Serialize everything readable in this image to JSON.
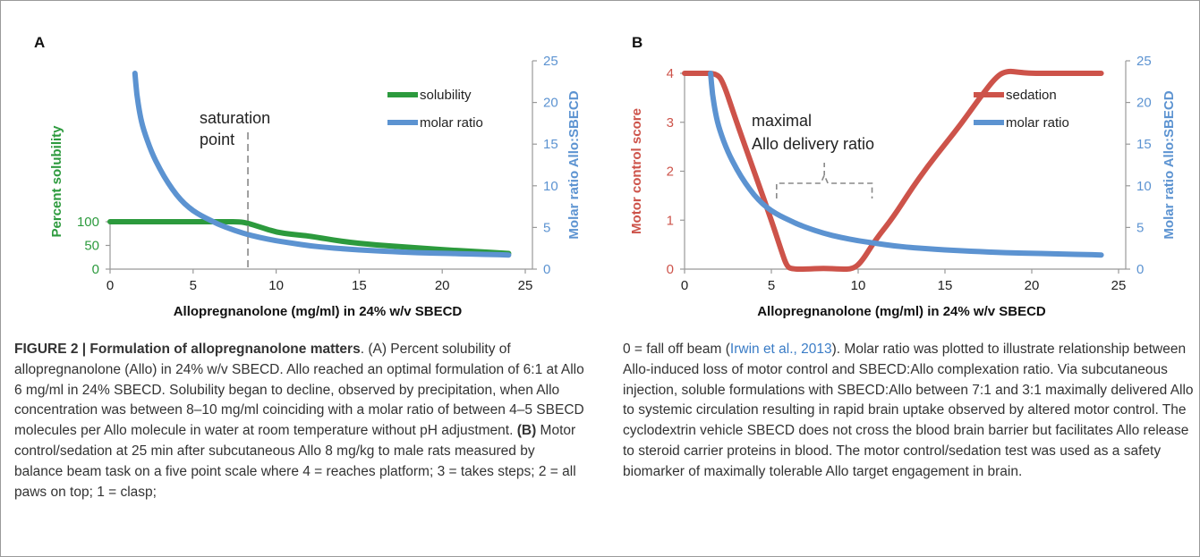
{
  "colors": {
    "green": "#2c9a3d",
    "blue": "#5c93d1",
    "red": "#cd534a",
    "grid": "#999999",
    "dash": "#888888"
  },
  "chart_data": [
    {
      "panel_label": "A",
      "type": "line",
      "xlabel": "Allopregnanolone (mg/ml) in 24% w/v SBECD",
      "ylabel_left": "Percent solubility",
      "ylabel_right": "Molar ratio Allo:SBECD",
      "xlim": [
        0,
        25
      ],
      "xticks": [
        0,
        5,
        10,
        15,
        20,
        25
      ],
      "ylim_left": [
        0,
        100
      ],
      "yticks_left": [
        0,
        50,
        100
      ],
      "ylim_right": [
        0,
        25
      ],
      "yticks_right": [
        0,
        5,
        10,
        15,
        20,
        25
      ],
      "annotation": {
        "lines": [
          "saturation",
          "point"
        ],
        "x": 8.3
      },
      "legend": {
        "placement": "top-right",
        "entries": [
          "solubility",
          "molar ratio"
        ]
      },
      "series": [
        {
          "name": "solubility",
          "axis": "left",
          "color": "green",
          "x": [
            0,
            2,
            4,
            6,
            7,
            7.8,
            8.3,
            9,
            10,
            11,
            12,
            14,
            16,
            18,
            20,
            22,
            24
          ],
          "y": [
            100,
            100,
            100,
            100,
            100,
            100,
            97,
            89,
            78,
            73,
            70,
            58,
            51,
            46,
            41,
            37,
            33
          ]
        },
        {
          "name": "molar ratio",
          "axis": "right",
          "color": "blue",
          "x": [
            1.5,
            1.6,
            1.8,
            2,
            2.5,
            3,
            3.5,
            4,
            4.5,
            5,
            5.5,
            6,
            6.5,
            7,
            8,
            9,
            10,
            11,
            12,
            13,
            14,
            15,
            16,
            17,
            18,
            19,
            20,
            21,
            22,
            23,
            24
          ],
          "y": [
            23.5,
            21,
            18.5,
            16.8,
            14,
            12,
            10.3,
            8.9,
            7.8,
            7,
            6.4,
            5.9,
            5.4,
            5,
            4.3,
            3.8,
            3.4,
            3.1,
            2.8,
            2.6,
            2.45,
            2.3,
            2.2,
            2.1,
            2.0,
            1.95,
            1.9,
            1.85,
            1.8,
            1.75,
            1.7
          ]
        }
      ]
    },
    {
      "panel_label": "B",
      "type": "line",
      "xlabel": "Allopregnanolone (mg/ml) in 24% w/v SBECD",
      "ylabel_left": "Motor control score",
      "ylabel_right": "Molar ratio Allo:SBECD",
      "xlim": [
        0,
        25
      ],
      "xticks": [
        0,
        5,
        10,
        15,
        20,
        25
      ],
      "ylim_left": [
        0,
        4
      ],
      "yticks_left": [
        0,
        1,
        2,
        3,
        4
      ],
      "ylim_right": [
        0,
        25
      ],
      "yticks_right": [
        0,
        5,
        10,
        15,
        20,
        25
      ],
      "annotation": {
        "lines": [
          "maximal",
          "Allo delivery ratio"
        ],
        "bracket_x": [
          5.3,
          10.8
        ]
      },
      "legend": {
        "placement": "top-right",
        "entries": [
          "sedation",
          "molar ratio"
        ]
      },
      "series": [
        {
          "name": "sedation",
          "axis": "left",
          "color": "red",
          "x": [
            0,
            1,
            1.8,
            2.2,
            3,
            4,
            5,
            5.6,
            5.9,
            6.2,
            7,
            8,
            9,
            9.7,
            10.2,
            11,
            12,
            13,
            14,
            15,
            16,
            17,
            18,
            18.6,
            19.3,
            20,
            21,
            22,
            23,
            24
          ],
          "y": [
            4,
            4,
            4,
            3.85,
            3.0,
            2.0,
            1.0,
            0.35,
            0.05,
            0,
            0,
            0.02,
            0,
            0,
            0.15,
            0.6,
            1.05,
            1.6,
            2.1,
            2.55,
            3.0,
            3.5,
            3.95,
            4.05,
            4.02,
            4,
            4,
            4,
            4,
            4
          ]
        },
        {
          "name": "molar ratio",
          "axis": "right",
          "color": "blue",
          "x": [
            1.5,
            1.6,
            1.8,
            2,
            2.5,
            3,
            3.5,
            4,
            4.5,
            5,
            5.5,
            6,
            6.5,
            7,
            8,
            9,
            10,
            11,
            12,
            13,
            14,
            15,
            16,
            17,
            18,
            19,
            20,
            21,
            22,
            23,
            24
          ],
          "y": [
            23.5,
            21,
            18.5,
            16.8,
            14,
            12,
            10.3,
            8.9,
            7.8,
            7,
            6.4,
            5.9,
            5.4,
            5,
            4.3,
            3.8,
            3.4,
            3.1,
            2.8,
            2.6,
            2.45,
            2.3,
            2.2,
            2.1,
            2.0,
            1.95,
            1.9,
            1.85,
            1.8,
            1.75,
            1.7
          ]
        }
      ]
    }
  ],
  "caption": {
    "title": "FIGURE 2 | Formulation of allopregnanolone matters",
    "left_p1": ". (A) Percent solubility of allopregnanolone (Allo) in 24% w/v SBECD. Allo reached an optimal formulation of 6:1 at Allo 6 mg/ml in 24% SBECD. Solubility began to decline, observed by precipitation, when Allo concentration was between 8–10 mg/ml coinciding with a molar ratio of between 4–5 SBECD molecules per Allo molecule in water at room temperature without pH adjustment. ",
    "left_b_label": "(B)",
    "left_p2": " Motor control/sedation at 25 min after subcutaneous Allo 8 mg/kg to male rats measured by balance beam task on a five point scale where 4 = reaches platform; 3 = takes steps; 2 = all paws on top; 1 = clasp;",
    "right_pre": "0 = fall off beam (",
    "right_cite": "Irwin et al., 2013",
    "right_post": "). Molar ratio was plotted to illustrate relationship between Allo-induced loss of motor control and SBECD:Allo complexation ratio. Via subcutaneous injection, soluble formulations with SBECD:Allo between 7:1 and 3:1 maximally delivered Allo to systemic circulation resulting in rapid brain uptake observed by altered motor control. The cyclodextrin vehicle SBECD does not cross the blood brain barrier but facilitates Allo release to steroid carrier proteins in blood. The motor control/sedation test was used as a safety biomarker of maximally tolerable Allo target engagement in brain."
  }
}
